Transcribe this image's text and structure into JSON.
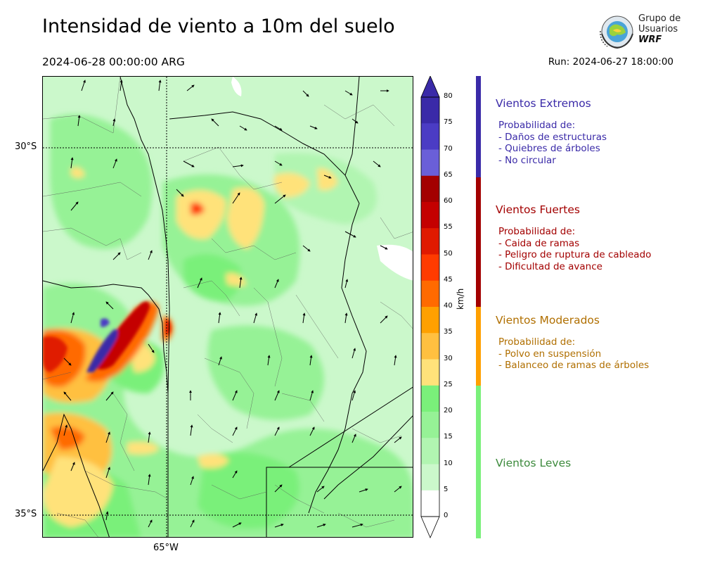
{
  "header": {
    "title": "Intensidad de viento a 10m del suelo",
    "valid_time": "2024-06-28 00:00:00 ARG",
    "run": "Run: 2024-06-27 18:00:00"
  },
  "logo": {
    "line1": "Grupo de",
    "line2": "Usuarios",
    "line3": "WRF"
  },
  "map": {
    "lat_labels": [
      "30°S",
      "35°S"
    ],
    "lon_labels": [
      "65°W"
    ]
  },
  "colorbar": {
    "units": "km/h",
    "ticks": [
      "80",
      "75",
      "70",
      "65",
      "60",
      "55",
      "50",
      "45",
      "40",
      "35",
      "30",
      "25",
      "20",
      "15",
      "10",
      "5",
      "0"
    ],
    "colors": [
      "#3a2aa8",
      "#4b3cc4",
      "#6a5fd8",
      "#a30000",
      "#c40000",
      "#e01a00",
      "#ff3b00",
      "#ff6a00",
      "#ffa000",
      "#ffc040",
      "#ffe27a",
      "#7af07a",
      "#96f296",
      "#b1f5b1",
      "#cbf8cb",
      "#ffffff"
    ]
  },
  "categories": [
    {
      "title": "Vientos Extremos",
      "color": "#3a2aa8",
      "lines": [
        "Probabilidad de:",
        "- Daños de estructuras",
        "- Quiebres de árboles",
        "- No circular"
      ]
    },
    {
      "title": "Vientos Fuertes",
      "color": "#a30000",
      "lines": [
        "Probabilidad de:",
        "- Caida de ramas",
        "- Peligro de ruptura de cableado",
        "- Dificultad de avance"
      ]
    },
    {
      "title": "Vientos Moderados",
      "color": "#b06f00",
      "lines": [
        "Probabilidad de:",
        "- Polvo en suspensión",
        "- Balanceo de ramas de árboles"
      ]
    },
    {
      "title": "Vientos Leves",
      "color": "#3c8a3c",
      "lines": []
    }
  ],
  "legend_bar_colors": [
    "#3a2aa8",
    "#a30000",
    "#ffa000",
    "#7af07a"
  ]
}
